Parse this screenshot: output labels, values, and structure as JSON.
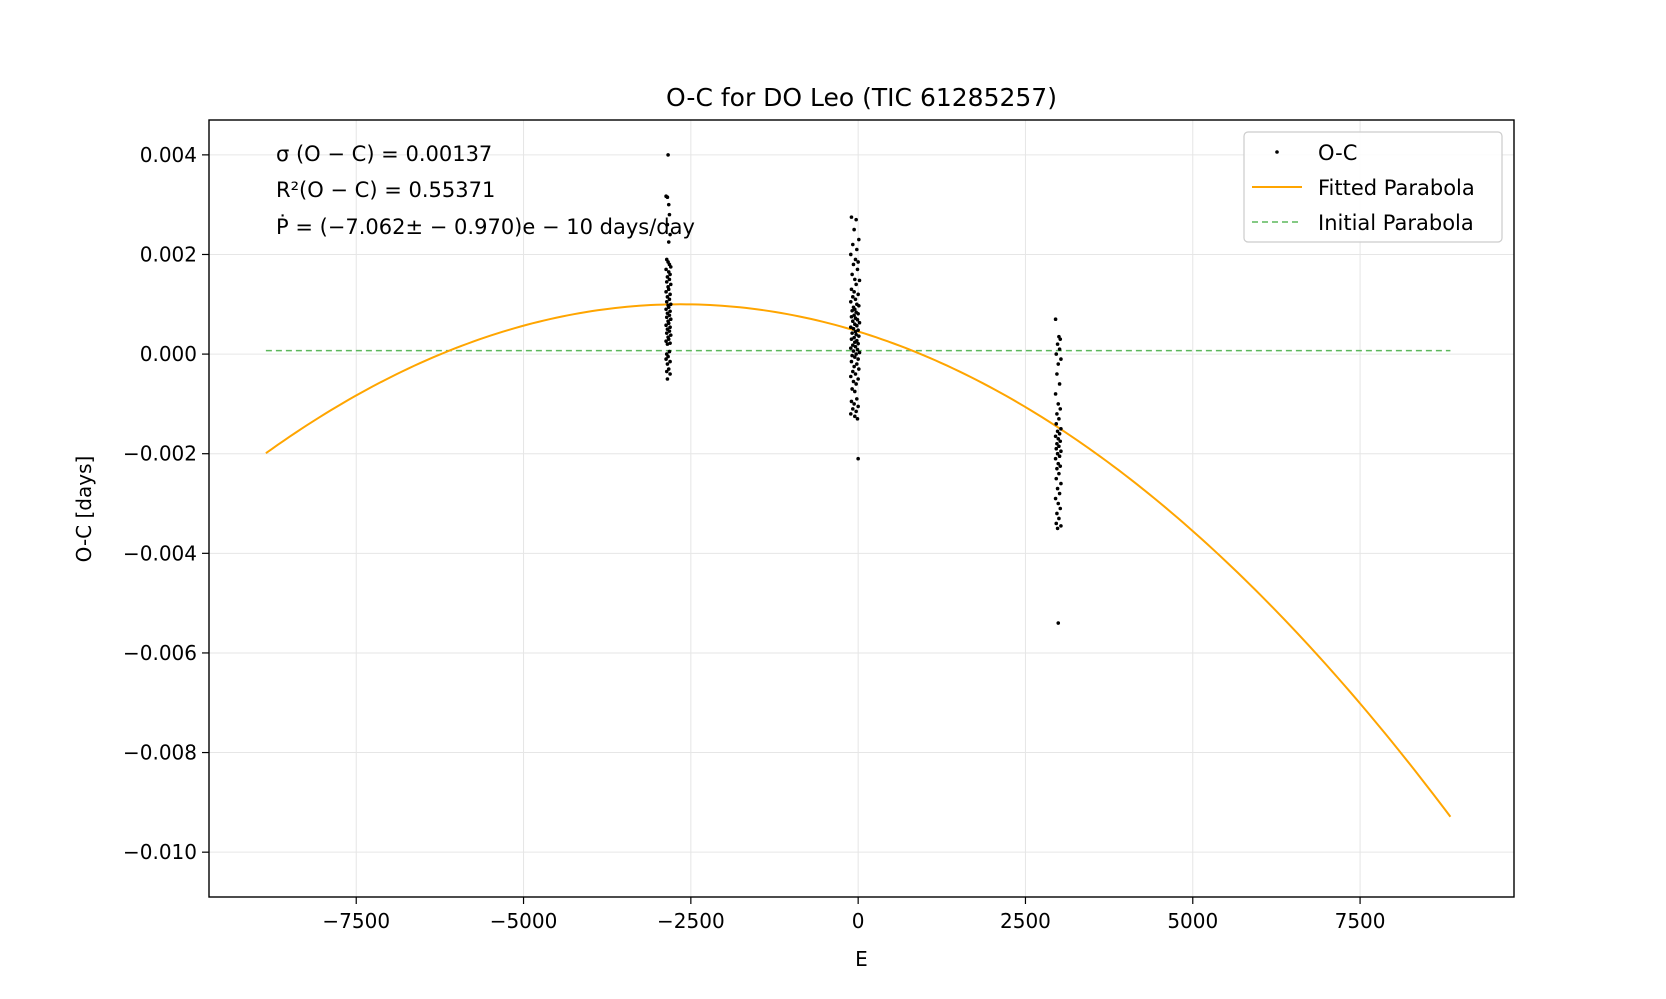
{
  "chart_data": {
    "type": "scatter",
    "title": "O-C for DO Leo (TIC 61285257)",
    "xlabel": "E",
    "ylabel": "O-C [days]",
    "xlim": [
      -9700,
      9800
    ],
    "ylim": [
      -0.0109,
      0.0047
    ],
    "grid": true,
    "legend_position": "top-right",
    "x_ticks": [
      -7500,
      -5000,
      -2500,
      0,
      2500,
      5000,
      7500
    ],
    "x_tick_labels": [
      "−7500",
      "−5000",
      "−2500",
      "0",
      "2500",
      "5000",
      "7500"
    ],
    "y_ticks": [
      0.004,
      0.002,
      0.0,
      -0.002,
      -0.004,
      -0.006,
      -0.008,
      -0.01
    ],
    "y_tick_labels": [
      "0.004",
      "0.002",
      "0.000",
      "−0.002",
      "−0.004",
      "−0.006",
      "−0.008",
      "−0.010"
    ],
    "annotations": {
      "sigma": "σ (O − C) = 0.00137",
      "r2": "R²(O − C) = 0.55371",
      "pdot": "Ṗ = (−7.062± − 0.970)e − 10 days/day"
    },
    "legend": [
      "O-C",
      "Fitted Parabola",
      "Initial Parabola"
    ],
    "series": [
      {
        "name": "O-C",
        "kind": "points",
        "color": "#000000",
        "clusters": [
          {
            "x_center": -2830,
            "points": [
              [
                -2840,
                0.004
              ],
              [
                -2870,
                0.00317
              ],
              [
                -2850,
                0.00315
              ],
              [
                -2830,
                0.003
              ],
              [
                -2820,
                0.0028
              ],
              [
                -2850,
                0.0026
              ],
              [
                -2810,
                0.0024
              ],
              [
                -2830,
                0.00225
              ],
              [
                -2860,
                0.0019
              ],
              [
                -2840,
                0.00185
              ],
              [
                -2820,
                0.0018
              ],
              [
                -2800,
                0.00175
              ],
              [
                -2870,
                0.0017
              ],
              [
                -2830,
                0.00165
              ],
              [
                -2810,
                0.0016
              ],
              [
                -2850,
                0.00155
              ],
              [
                -2820,
                0.0015
              ],
              [
                -2860,
                0.00145
              ],
              [
                -2800,
                0.0014
              ],
              [
                -2840,
                0.00135
              ],
              [
                -2830,
                0.0013
              ],
              [
                -2870,
                0.00125
              ],
              [
                -2810,
                0.0012
              ],
              [
                -2850,
                0.00115
              ],
              [
                -2820,
                0.0011
              ],
              [
                -2860,
                0.00105
              ],
              [
                -2800,
                0.001
              ],
              [
                -2840,
                0.00098
              ],
              [
                -2830,
                0.00094
              ],
              [
                -2870,
                0.0009
              ],
              [
                -2810,
                0.00086
              ],
              [
                -2850,
                0.00082
              ],
              [
                -2820,
                0.00078
              ],
              [
                -2860,
                0.00074
              ],
              [
                -2800,
                0.0007
              ],
              [
                -2840,
                0.00066
              ],
              [
                -2830,
                0.00062
              ],
              [
                -2870,
                0.00058
              ],
              [
                -2810,
                0.00054
              ],
              [
                -2850,
                0.0005
              ],
              [
                -2820,
                0.00046
              ],
              [
                -2860,
                0.00042
              ],
              [
                -2800,
                0.00038
              ],
              [
                -2840,
                0.00034
              ],
              [
                -2830,
                0.0003
              ],
              [
                -2870,
                0.00026
              ],
              [
                -2810,
                0.00022
              ],
              [
                -2850,
                0.0002
              ],
              [
                -2820,
                5e-05
              ],
              [
                -2860,
                0.0
              ],
              [
                -2840,
                -5e-05
              ],
              [
                -2870,
                -0.0001
              ],
              [
                -2810,
                -0.00015
              ],
              [
                -2850,
                -0.0002
              ],
              [
                -2830,
                -0.0003
              ],
              [
                -2860,
                -0.00035
              ],
              [
                -2810,
                -0.0004
              ],
              [
                -2850,
                -0.0005
              ]
            ]
          },
          {
            "x_center": -20,
            "points": [
              [
                -100,
                0.00275
              ],
              [
                -30,
                0.0027
              ],
              [
                -60,
                0.0025
              ],
              [
                10,
                0.0023
              ],
              [
                -80,
                0.0022
              ],
              [
                -20,
                0.0021
              ],
              [
                -110,
                0.002
              ],
              [
                -40,
                0.0019
              ],
              [
                0,
                0.00185
              ],
              [
                -70,
                0.0018
              ],
              [
                -10,
                0.0017
              ],
              [
                -90,
                0.0016
              ],
              [
                -50,
                0.0015
              ],
              [
                20,
                0.00148
              ],
              [
                -30,
                0.0014
              ],
              [
                -100,
                0.0013
              ],
              [
                -60,
                0.00125
              ],
              [
                0,
                0.0012
              ],
              [
                -80,
                0.00115
              ],
              [
                -40,
                0.0011
              ],
              [
                -110,
                0.00105
              ],
              [
                -20,
                0.001
              ],
              [
                10,
                0.00097
              ],
              [
                -70,
                0.00094
              ],
              [
                -50,
                0.0009
              ],
              [
                -90,
                0.00087
              ],
              [
                -30,
                0.00084
              ],
              [
                0,
                0.00081
              ],
              [
                -60,
                0.00078
              ],
              [
                -100,
                0.00075
              ],
              [
                -40,
                0.00072
              ],
              [
                -10,
                0.00069
              ],
              [
                -80,
                0.00066
              ],
              [
                20,
                0.00063
              ],
              [
                -50,
                0.0006
              ],
              [
                -20,
                0.00057
              ],
              [
                -110,
                0.00054
              ],
              [
                -70,
                0.00051
              ],
              [
                0,
                0.00048
              ],
              [
                -40,
                0.00045
              ],
              [
                -90,
                0.00042
              ],
              [
                -30,
                0.00039
              ],
              [
                10,
                0.00036
              ],
              [
                -60,
                0.00033
              ],
              [
                -100,
                0.0003
              ],
              [
                -20,
                0.00027
              ],
              [
                -50,
                0.00024
              ],
              [
                0,
                0.00021
              ],
              [
                -80,
                0.00018
              ],
              [
                -40,
                0.00015
              ],
              [
                -110,
                0.00012
              ],
              [
                -10,
                9e-05
              ],
              [
                -70,
                6e-05
              ],
              [
                20,
                3e-05
              ],
              [
                -30,
                0.0
              ],
              [
                -90,
                -3e-05
              ],
              [
                -50,
                -6e-05
              ],
              [
                0,
                -0.0001
              ],
              [
                -100,
                -0.00015
              ],
              [
                -20,
                -0.0002
              ],
              [
                -60,
                -0.00025
              ],
              [
                10,
                -0.0003
              ],
              [
                -80,
                -0.00035
              ],
              [
                -40,
                -0.0004
              ],
              [
                -110,
                -0.00045
              ],
              [
                0,
                -0.0005
              ],
              [
                -70,
                -0.00055
              ],
              [
                -30,
                -0.0006
              ],
              [
                -90,
                -0.0007
              ],
              [
                -50,
                -0.00075
              ],
              [
                -20,
                -0.0009
              ],
              [
                -100,
                -0.00095
              ],
              [
                -60,
                -0.001
              ],
              [
                0,
                -0.00105
              ],
              [
                -80,
                -0.0011
              ],
              [
                -30,
                -0.00115
              ],
              [
                -110,
                -0.0012
              ],
              [
                -50,
                -0.00125
              ],
              [
                -10,
                -0.0013
              ],
              [
                0,
                -0.0021
              ]
            ]
          },
          {
            "x_center": 2990,
            "points": [
              [
                2950,
                0.0007
              ],
              [
                3000,
                0.00035
              ],
              [
                3020,
                0.0003
              ],
              [
                2980,
                0.0002
              ],
              [
                3010,
                0.0001
              ],
              [
                2960,
                0.0
              ],
              [
                3030,
                -0.0001
              ],
              [
                2990,
                -0.0002
              ],
              [
                2970,
                -0.0004
              ],
              [
                3010,
                -0.0006
              ],
              [
                2950,
                -0.0008
              ],
              [
                2990,
                -0.001
              ],
              [
                3020,
                -0.0011
              ],
              [
                2970,
                -0.0012
              ],
              [
                3000,
                -0.0013
              ],
              [
                2960,
                -0.0014
              ],
              [
                3030,
                -0.0015
              ],
              [
                2980,
                -0.00155
              ],
              [
                3010,
                -0.0016
              ],
              [
                2950,
                -0.00165
              ],
              [
                2990,
                -0.0017
              ],
              [
                3020,
                -0.00175
              ],
              [
                2970,
                -0.0018
              ],
              [
                3000,
                -0.00185
              ],
              [
                2960,
                -0.0019
              ],
              [
                3030,
                -0.00195
              ],
              [
                2980,
                -0.002
              ],
              [
                3010,
                -0.00205
              ],
              [
                2950,
                -0.0021
              ],
              [
                2990,
                -0.0022
              ],
              [
                3020,
                -0.00225
              ],
              [
                2970,
                -0.0023
              ],
              [
                3000,
                -0.0024
              ],
              [
                2960,
                -0.0025
              ],
              [
                3030,
                -0.0026
              ],
              [
                2980,
                -0.0027
              ],
              [
                3010,
                -0.0028
              ],
              [
                2950,
                -0.0029
              ],
              [
                2990,
                -0.003
              ],
              [
                3020,
                -0.0031
              ],
              [
                2970,
                -0.0032
              ],
              [
                3000,
                -0.0033
              ],
              [
                2960,
                -0.0034
              ],
              [
                3030,
                -0.00345
              ],
              [
                2980,
                -0.0035
              ],
              [
                2990,
                -0.0054
              ]
            ]
          }
        ]
      },
      {
        "name": "Fitted Parabola",
        "kind": "line",
        "color": "#ffa500",
        "x_range": [
          -8850,
          8850
        ],
        "vertex_x": -2650,
        "vertex_y": 0.001,
        "curvature": -7.78e-11
      },
      {
        "name": "Initial Parabola",
        "kind": "dashed-line",
        "color": "#5cb85c",
        "x_range": [
          -8850,
          8850
        ],
        "y": 7e-05
      }
    ]
  }
}
